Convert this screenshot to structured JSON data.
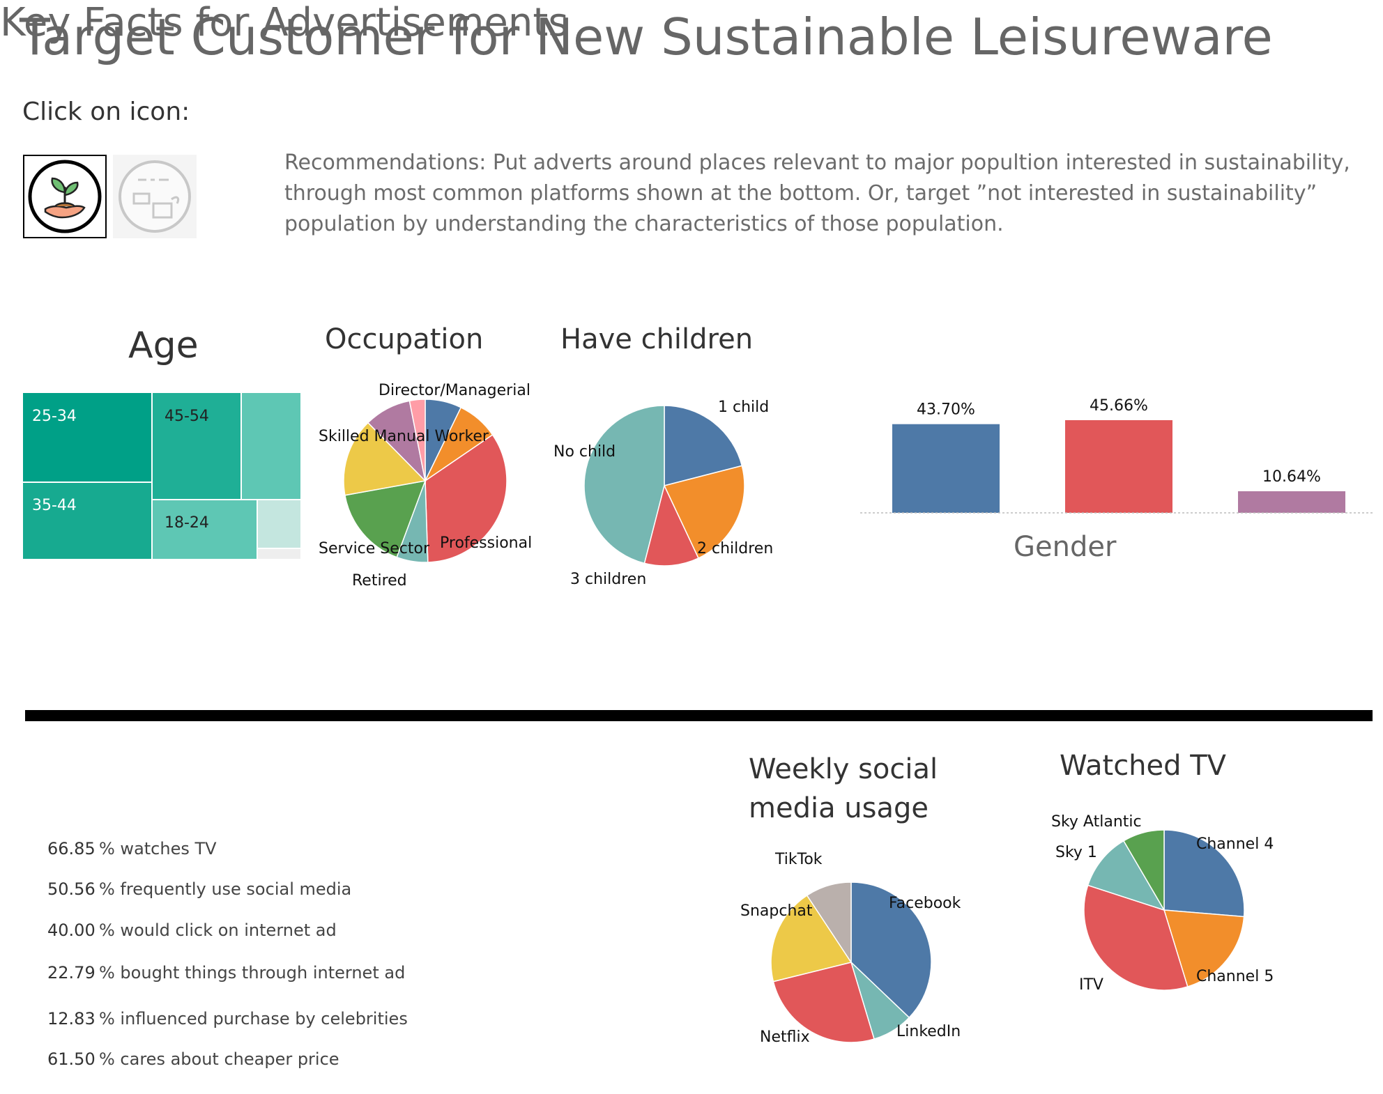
{
  "title": "Target Customer for New Sustainable Leisureware",
  "click_label": "Click on icon:",
  "icons": [
    {
      "name": "sustainable-plant-hand",
      "selected": true
    },
    {
      "name": "deforestation-stumps",
      "selected": false
    }
  ],
  "recommendation": "Recommendations: Put adverts around places relevant to major popultion interested in sustainability, through most common platforms shown at the bottom. Or, target ”not interested in sustainability” population by understanding the characteristics of those population.",
  "colors": {
    "blue": "#4e79a7",
    "orange": "#f28e2b",
    "red": "#e15759",
    "teal": "#76b7b2",
    "green": "#59a14f",
    "yellow": "#edc948",
    "purple": "#b07aa1",
    "pink": "#ff9da7",
    "gray": "#bab0ac",
    "treemap_dark": "#00a087"
  },
  "chart_data": [
    {
      "id": "age",
      "type": "treemap",
      "title": "Age",
      "items": [
        {
          "label": "25-34",
          "value": 22
        },
        {
          "label": "35-44",
          "value": 19
        },
        {
          "label": "45-54",
          "value": 17
        },
        {
          "label": "18-24",
          "value": 11
        },
        {
          "label": "",
          "value": 10
        },
        {
          "label": "",
          "value": 5
        },
        {
          "label": "",
          "value": 1
        }
      ]
    },
    {
      "id": "occupation",
      "type": "pie",
      "title": "Occupation",
      "slices": [
        {
          "label": "Director/Managerial",
          "value": 7,
          "color": "#4e79a7"
        },
        {
          "label": "",
          "value": 8,
          "color": "#f28e2b"
        },
        {
          "label": "Professional",
          "value": 33,
          "color": "#e15759"
        },
        {
          "label": "Retired",
          "value": 6,
          "color": "#76b7b2"
        },
        {
          "label": "Service Sector",
          "value": 16,
          "color": "#59a14f"
        },
        {
          "label": "Skilled Manual Worker",
          "value": 15,
          "color": "#edc948"
        },
        {
          "label": "",
          "value": 9,
          "color": "#b07aa1"
        },
        {
          "label": "",
          "value": 3,
          "color": "#ff9da7"
        }
      ]
    },
    {
      "id": "children",
      "type": "pie",
      "title": "Have children",
      "slices": [
        {
          "label": "1 child",
          "value": 21,
          "color": "#4e79a7"
        },
        {
          "label": "2 children",
          "value": 22,
          "color": "#f28e2b"
        },
        {
          "label": "3 children",
          "value": 11,
          "color": "#e15759"
        },
        {
          "label": "No child",
          "value": 46,
          "color": "#76b7b2"
        }
      ]
    },
    {
      "id": "gender",
      "type": "bar",
      "title": "Gender",
      "categories": [
        "",
        "",
        ""
      ],
      "values": [
        43.7,
        45.66,
        10.64
      ],
      "labels": [
        "43.70%",
        "45.66%",
        "10.64%"
      ],
      "colors": [
        "#4e79a7",
        "#e15759",
        "#b07aa1"
      ],
      "ylim": [
        0,
        46
      ]
    },
    {
      "id": "social",
      "type": "pie",
      "title": "Weekly social media usage",
      "slices": [
        {
          "label": "Facebook",
          "value": 36,
          "color": "#4e79a7"
        },
        {
          "label": "LinkedIn",
          "value": 8,
          "color": "#76b7b2"
        },
        {
          "label": "Netflix",
          "value": 25,
          "color": "#e15759"
        },
        {
          "label": "Snapchat",
          "value": 19,
          "color": "#edc948"
        },
        {
          "label": "TikTok",
          "value": 9,
          "color": "#bab0ac"
        }
      ]
    },
    {
      "id": "tv",
      "type": "pie",
      "title": "Watched TV",
      "slices": [
        {
          "label": "Channel 4",
          "value": 25,
          "color": "#4e79a7"
        },
        {
          "label": "Channel 5",
          "value": 18,
          "color": "#f28e2b"
        },
        {
          "label": "ITV",
          "value": 33,
          "color": "#e15759"
        },
        {
          "label": "Sky 1",
          "value": 11,
          "color": "#76b7b2"
        },
        {
          "label": "Sky Atlantic",
          "value": 8,
          "color": "#59a14f"
        }
      ]
    }
  ],
  "key_facts": {
    "title": "Key Facts for Advertisements",
    "items": [
      {
        "value": "66.85",
        "text": "% watches TV"
      },
      {
        "value": "50.56",
        "text": "% frequently use social media"
      },
      {
        "value": "40.00",
        "text": "% would click on internet ad"
      },
      {
        "value": "22.79",
        "text": "% bought things through internet ad"
      },
      {
        "value": "12.83",
        "text": "% influenced purchase by celebrities"
      },
      {
        "value": "61.50",
        "text": "% cares about cheaper price"
      }
    ]
  }
}
